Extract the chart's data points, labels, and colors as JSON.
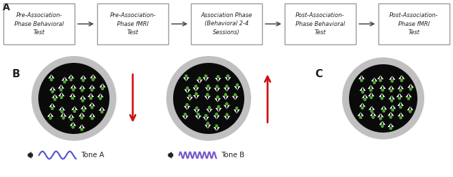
{
  "panel_a_boxes": [
    "Pre-Association-\nPhase Behavioral\nTest",
    "Pre-Association-\nPhase fMRI\nTest",
    "Association Phase\n(Behavioral 2-4\nSessions)",
    "Post-Association-\nPhase Behavioral\nTest",
    "Post-Association-\nPhase fMRI\nTest"
  ],
  "box_color": "#ffffff",
  "box_edge_color": "#999999",
  "arrow_color": "#444444",
  "text_color": "#222222",
  "label_a": "A",
  "label_b": "B",
  "label_c": "C",
  "tone_a_label": "Tone A",
  "tone_b_label": "Tone B",
  "bg_color": "#ffffff",
  "circle_outer_color": "#c0c0c0",
  "circle_inner_color": "#0a0a0a",
  "red_arrow_color": "#cc1111",
  "wave_color_a": "#5555cc",
  "wave_color_b": "#7755cc",
  "speaker_color": "#222222",
  "white_arrow_color": "#ffffff",
  "green_dot_color": "#44aa22"
}
